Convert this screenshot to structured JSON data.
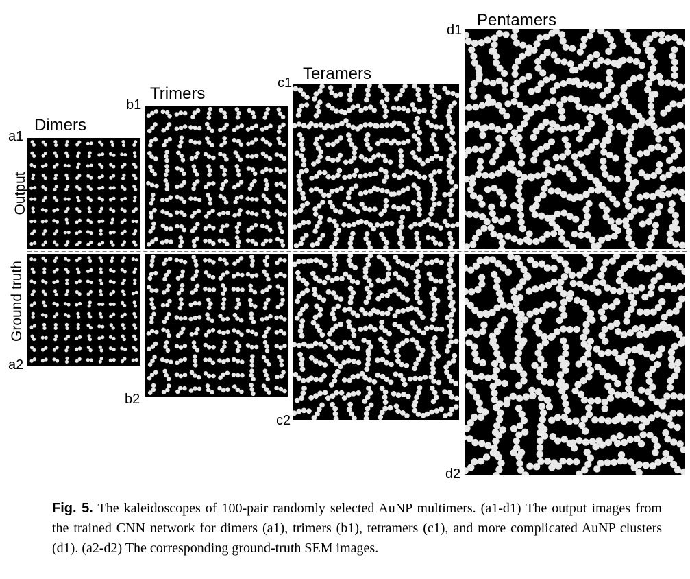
{
  "columns": [
    {
      "title": "Dimers",
      "output_id": "a1",
      "truth_id": "a2"
    },
    {
      "title": "Trimers",
      "output_id": "b1",
      "truth_id": "b2"
    },
    {
      "title": "Teramers",
      "output_id": "c1",
      "truth_id": "c2"
    },
    {
      "title": "Pentamers",
      "output_id": "d1",
      "truth_id": "d2"
    }
  ],
  "row_labels": {
    "output": "Output",
    "ground_truth": "Ground truth"
  },
  "caption": {
    "label": "Fig. 5.",
    "text": " The kaleidoscopes of 100-pair randomly selected AuNP multimers. (a1-d1) The output images from the trained CNN network for dimers (a1), trimers (b1), tetramers (c1), and more complicated AuNP clusters (d1). (a2-d2) The corresponding ground-truth SEM images."
  },
  "colors": {
    "panel_background": "#000000",
    "particle": "#e8e8e8",
    "divider": "#777777"
  }
}
